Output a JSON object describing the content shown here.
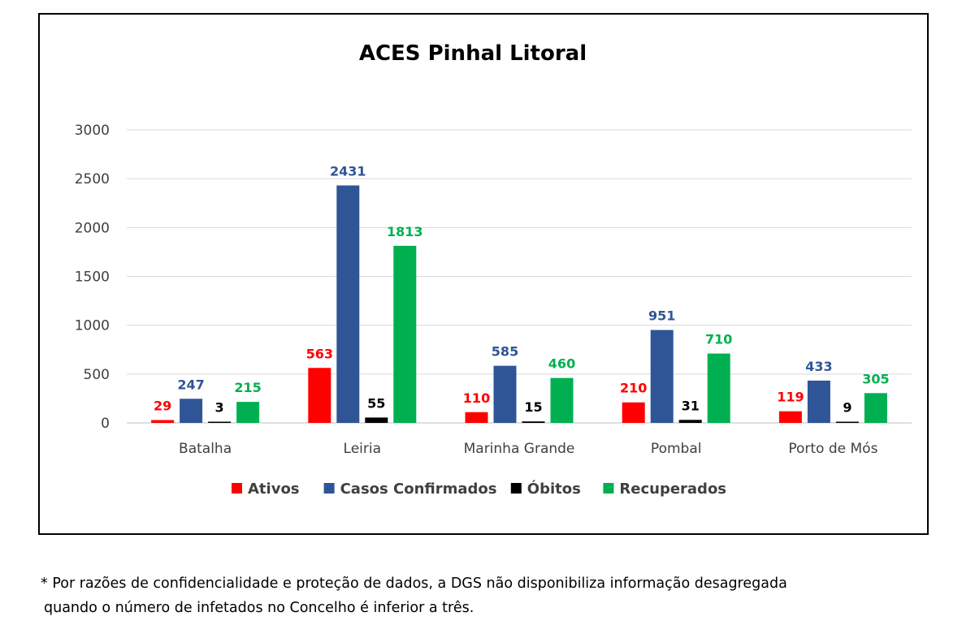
{
  "chart_data": {
    "type": "bar",
    "title": "ACES Pinhal Litoral",
    "xlabel": "",
    "ylabel": "",
    "ylim": [
      0,
      3000
    ],
    "yticks": [
      "0",
      "500",
      "1000",
      "1500",
      "2000",
      "2500",
      "3000"
    ],
    "grid": true,
    "legend_position": "bottom",
    "categories": [
      "Batalha",
      "Leiria",
      "Marinha Grande",
      "Pombal",
      "Porto de Mós"
    ],
    "series": [
      {
        "name": "Ativos",
        "color": "#ff0000",
        "label_color": "#ff0000",
        "values": [
          29,
          563,
          110,
          210,
          119
        ]
      },
      {
        "name": "Casos Confirmados",
        "color": "#2f5597",
        "label_color": "#2f5597",
        "values": [
          247,
          2431,
          585,
          951,
          433
        ]
      },
      {
        "name": "Óbitos",
        "color": "#000000",
        "label_color": "#000000",
        "values": [
          3,
          55,
          15,
          31,
          9
        ]
      },
      {
        "name": "Recuperados",
        "color": "#00b050",
        "label_color": "#00b050",
        "values": [
          215,
          1813,
          460,
          710,
          305
        ]
      }
    ]
  },
  "footnote": {
    "line1": "* Por razões de confidencialidade e proteção de dados, a DGS não disponibiliza informação desagregada",
    "line2": "quando o número de infetados no Concelho é inferior a três."
  }
}
